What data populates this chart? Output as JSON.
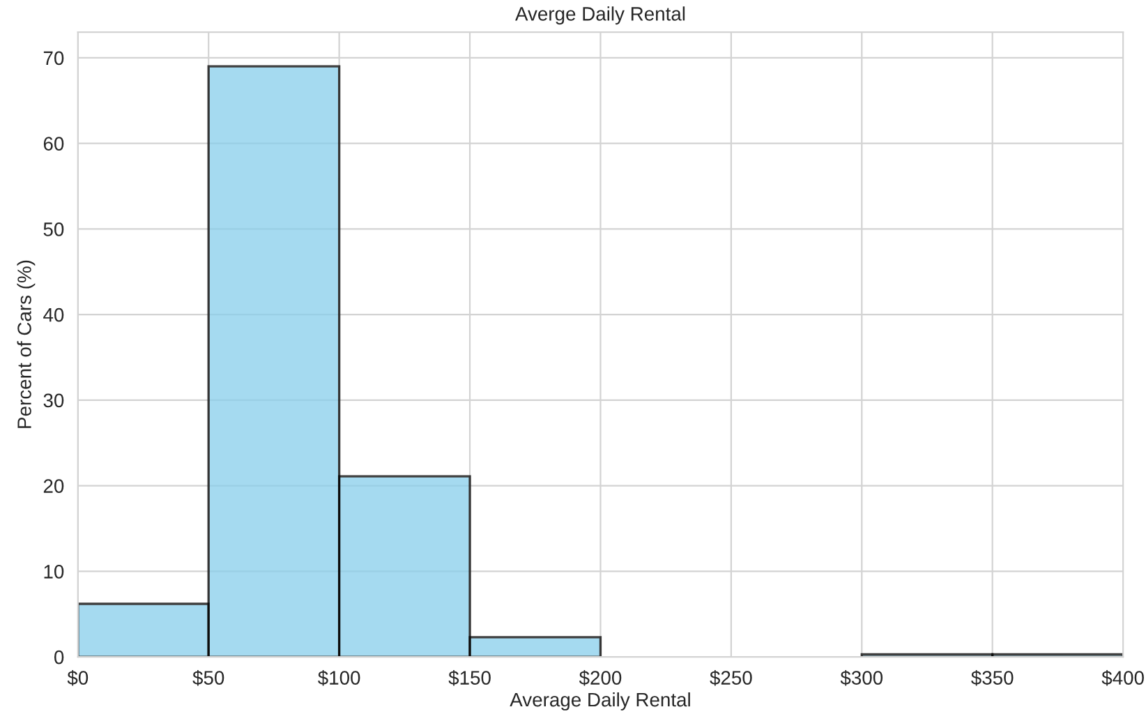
{
  "chart_data": {
    "type": "histogram",
    "title": "Averge Daily Rental",
    "xlabel": "Average Daily Rental",
    "ylabel": "Percent of Cars (%)",
    "bins": [
      0,
      50,
      100,
      150,
      200,
      250,
      300,
      350,
      400
    ],
    "values": [
      6.2,
      69.0,
      21.1,
      2.3,
      0,
      0,
      0.3,
      0.3
    ],
    "color": "#87ceeb",
    "xlim": [
      0,
      400
    ],
    "xticks": [
      {
        "value": 0,
        "label": "$0"
      },
      {
        "value": 50,
        "label": "$50"
      },
      {
        "value": 100,
        "label": "$100"
      },
      {
        "value": 150,
        "label": "$150"
      },
      {
        "value": 200,
        "label": "$200"
      },
      {
        "value": 250,
        "label": "$250"
      },
      {
        "value": 300,
        "label": "$300"
      },
      {
        "value": 350,
        "label": "$350"
      },
      {
        "value": 400,
        "label": "$400"
      }
    ],
    "ylim": [
      0,
      73
    ],
    "yticks": [
      0,
      10,
      20,
      30,
      40,
      50,
      60,
      70
    ],
    "grid": true
  }
}
